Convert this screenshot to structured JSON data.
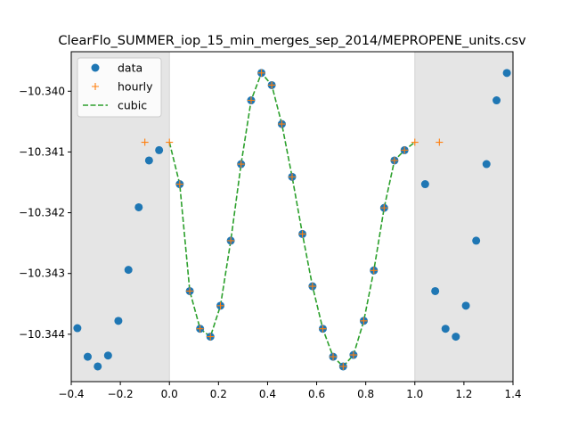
{
  "chart_data": {
    "type": "scatter",
    "title": "ClearFlo_SUMMER_iop_15_min_merges_sep_2014/MEPROPENE_units.csv",
    "xlabel": "",
    "ylabel": "",
    "xlim": [
      -0.4,
      1.4
    ],
    "ylim": [
      -10.34478,
      -10.33935
    ],
    "xticks": [
      -0.4,
      -0.2,
      0.0,
      0.2,
      0.4,
      0.6,
      0.8,
      1.0,
      1.2,
      1.4
    ],
    "xtick_labels": [
      "−0.4",
      "−0.2",
      "0.0",
      "0.2",
      "0.4",
      "0.6",
      "0.8",
      "1.0",
      "1.2",
      "1.4"
    ],
    "yticks": [
      -10.344,
      -10.343,
      -10.342,
      -10.341,
      -10.34
    ],
    "ytick_labels": [
      "−10.344",
      "−10.343",
      "−10.342",
      "−10.341",
      "−10.340"
    ],
    "grid": false,
    "legend_position": "top-left",
    "shaded_regions": [
      {
        "x": [
          -0.4,
          0.0
        ],
        "color": "#e5e5e5"
      },
      {
        "x": [
          1.0,
          1.4
        ],
        "color": "#e5e5e5"
      }
    ],
    "series": [
      {
        "name": "data",
        "kind": "markers",
        "marker": "circle",
        "color": "#1f77b4",
        "x": [
          -0.375,
          -0.333,
          -0.292,
          -0.25,
          -0.208,
          -0.167,
          -0.125,
          -0.083,
          -0.042,
          0.042,
          0.083,
          0.125,
          0.167,
          0.208,
          0.25,
          0.292,
          0.333,
          0.375,
          0.417,
          0.458,
          0.5,
          0.542,
          0.583,
          0.625,
          0.667,
          0.708,
          0.75,
          0.792,
          0.833,
          0.875,
          0.917,
          0.958,
          1.042,
          1.083,
          1.125,
          1.167,
          1.208,
          1.25,
          1.292,
          1.333,
          1.375
        ],
        "y": [
          -10.3439,
          -10.34437,
          -10.34453,
          -10.34435,
          -10.34378,
          -10.34294,
          -10.34191,
          -10.34114,
          -10.34097,
          -10.34153,
          -10.34329,
          -10.34391,
          -10.34404,
          -10.34353,
          -10.34246,
          -10.3412,
          -10.34015,
          -10.3397,
          -10.3399,
          -10.34054,
          -10.34141,
          -10.34235,
          -10.34321,
          -10.34391,
          -10.34437,
          -10.34453,
          -10.34434,
          -10.34378,
          -10.34295,
          -10.34192,
          -10.34114,
          -10.34097,
          -10.34153,
          -10.34329,
          -10.34391,
          -10.34404,
          -10.34353,
          -10.34246,
          -10.3412,
          -10.34015,
          -10.3397
        ]
      },
      {
        "name": "hourly",
        "kind": "markers",
        "marker": "plus",
        "color": "#ff7f0e",
        "x": [
          -0.1,
          0.0,
          0.042,
          0.083,
          0.125,
          0.167,
          0.208,
          0.25,
          0.292,
          0.333,
          0.375,
          0.417,
          0.458,
          0.5,
          0.542,
          0.583,
          0.625,
          0.667,
          0.708,
          0.75,
          0.792,
          0.833,
          0.875,
          0.917,
          0.958,
          1.0,
          1.1
        ],
        "y": [
          -10.34084,
          -10.34084,
          -10.34153,
          -10.34329,
          -10.34391,
          -10.34404,
          -10.34353,
          -10.34246,
          -10.3412,
          -10.34015,
          -10.3397,
          -10.3399,
          -10.34054,
          -10.34141,
          -10.34235,
          -10.34321,
          -10.34391,
          -10.34437,
          -10.34453,
          -10.34434,
          -10.34378,
          -10.34295,
          -10.34192,
          -10.34114,
          -10.34097,
          -10.34084,
          -10.34084
        ]
      },
      {
        "name": "cubic",
        "kind": "line",
        "style": "dashed",
        "color": "#2ca02c",
        "x": [
          0.0,
          0.042,
          0.083,
          0.125,
          0.167,
          0.208,
          0.25,
          0.292,
          0.333,
          0.375,
          0.417,
          0.458,
          0.5,
          0.542,
          0.583,
          0.625,
          0.667,
          0.708,
          0.75,
          0.792,
          0.833,
          0.875,
          0.917,
          0.958,
          1.0
        ],
        "y": [
          -10.34084,
          -10.34153,
          -10.34329,
          -10.34391,
          -10.34404,
          -10.34353,
          -10.34246,
          -10.3412,
          -10.34015,
          -10.3397,
          -10.3399,
          -10.34054,
          -10.34141,
          -10.34235,
          -10.34321,
          -10.34391,
          -10.34437,
          -10.34453,
          -10.34434,
          -10.34378,
          -10.34295,
          -10.34192,
          -10.34114,
          -10.34097,
          -10.34084
        ]
      }
    ]
  }
}
